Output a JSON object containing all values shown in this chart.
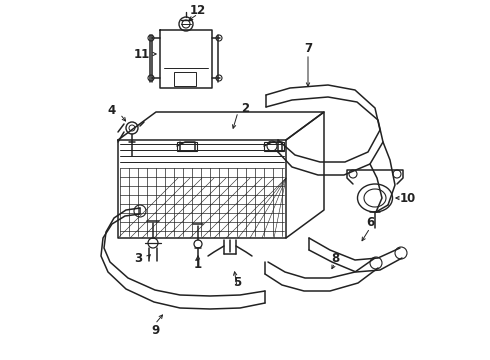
{
  "bg_color": "#ffffff",
  "line_color": "#222222",
  "lw": 1.1,
  "figsize": [
    4.9,
    3.6
  ],
  "dpi": 100,
  "xlim": [
    0,
    490
  ],
  "ylim": [
    0,
    360
  ]
}
